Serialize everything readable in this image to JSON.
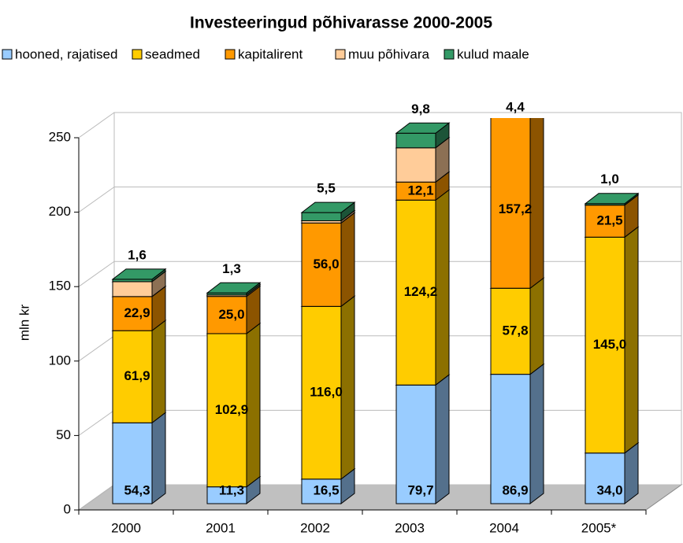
{
  "chart_data": {
    "type": "bar3d_stacked",
    "title": "Investeeringud põhivarasse 2000-2005",
    "y_label": "mln kr",
    "categories": [
      "2000",
      "2001",
      "2002",
      "2003",
      "2004",
      "2005*"
    ],
    "series": [
      {
        "name": "hooned, rajatised",
        "color": "#99ccff",
        "values": [
          54.3,
          11.3,
          16.5,
          79.7,
          86.9,
          34.0
        ],
        "value_labels": [
          "54,3",
          "11,3",
          "16,5",
          "79,7",
          "86,9",
          "34,0"
        ]
      },
      {
        "name": "seadmed",
        "color": "#ffcc00",
        "values": [
          61.9,
          102.9,
          116.0,
          124.2,
          57.8,
          145.0
        ],
        "value_labels": [
          "61,9",
          "102,9",
          "116,0",
          "124,2",
          "57,8",
          "145,0"
        ]
      },
      {
        "name": "kapitalirent",
        "color": "#ff9900",
        "values": [
          22.9,
          25.0,
          56.0,
          12.1,
          157.2,
          21.5
        ],
        "value_labels": [
          "22,9",
          "25,0",
          "56,0",
          "12,1",
          "157,2",
          "21,5"
        ]
      },
      {
        "name": "muu põhivara",
        "color": "#ffcc99",
        "values": [
          10,
          1,
          1.5,
          23,
          0,
          0
        ]
      },
      {
        "name": "kulud maale",
        "color": "#339966",
        "values": [
          1.6,
          1.3,
          5.5,
          9.8,
          4.4,
          1.0
        ],
        "value_labels": [
          "1,6",
          "1,3",
          "5,5",
          "9,8",
          "4,4",
          "1,0"
        ]
      }
    ],
    "ylim": [
      0,
      250
    ],
    "yticks": [
      0,
      50,
      100,
      150,
      200,
      250
    ],
    "grid": true,
    "legend": "top"
  }
}
